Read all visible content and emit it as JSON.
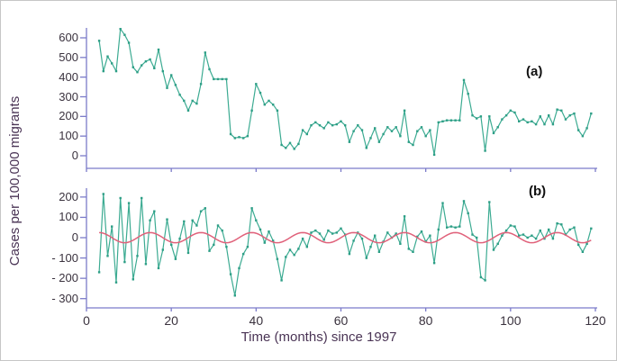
{
  "figure": {
    "ylabel": "Cases per 100,000 migrants",
    "xlabel": "Time (months) since 1997",
    "panel_a_label": "(a)",
    "panel_b_label": "(b)"
  },
  "colors": {
    "series_teal": "#3cab92",
    "marker_teal": "#2d9e86",
    "seasonal_red": "#e0617a",
    "axis_line": "#7b7bc9",
    "tick_text": "#3a323e",
    "title_text": "#4a3455",
    "panel_label_text": "#111111",
    "background": "#ffffff"
  },
  "chart_data": [
    {
      "type": "line",
      "panel": "a",
      "panel_label": "(a)",
      "x_start_month": 3,
      "x_step": 1,
      "values": [
        585,
        430,
        505,
        470,
        430,
        645,
        615,
        575,
        450,
        425,
        460,
        480,
        490,
        445,
        540,
        430,
        345,
        410,
        360,
        310,
        280,
        230,
        280,
        265,
        365,
        525,
        440,
        390,
        390,
        390,
        390,
        110,
        90,
        95,
        90,
        100,
        230,
        365,
        320,
        260,
        280,
        260,
        230,
        55,
        40,
        65,
        35,
        60,
        130,
        110,
        155,
        170,
        155,
        140,
        170,
        155,
        160,
        175,
        155,
        70,
        125,
        155,
        130,
        40,
        90,
        140,
        70,
        110,
        145,
        125,
        145,
        100,
        230,
        70,
        55,
        125,
        145,
        100,
        130,
        5,
        170,
        175,
        180,
        180,
        180,
        180,
        385,
        315,
        205,
        190,
        200,
        25,
        200,
        115,
        145,
        185,
        205,
        230,
        220,
        175,
        185,
        170,
        175,
        160,
        200,
        160,
        205,
        160,
        235,
        230,
        185,
        205,
        215,
        130,
        100,
        140,
        215
      ],
      "xlim": [
        0,
        120
      ],
      "xticks": [
        0,
        20,
        40,
        60,
        80,
        100,
        120
      ],
      "xtick_labels_shown": false,
      "ylim": [
        0,
        650
      ],
      "yticks": [
        600,
        500,
        400,
        300,
        200,
        100,
        0
      ],
      "ytick_labels": [
        "600",
        "500",
        "400",
        "300",
        "200",
        "100",
        "0"
      ],
      "grid": false,
      "markers": "square",
      "legend": "none"
    },
    {
      "type": "line",
      "panel": "b",
      "panel_label": "(b)",
      "x_start_month": 3,
      "x_step": 1,
      "series": [
        {
          "name": "detrended cases",
          "color": "#3cab92",
          "values": [
            -170,
            215,
            -90,
            55,
            -220,
            195,
            -120,
            170,
            -205,
            -90,
            195,
            -130,
            85,
            130,
            -150,
            -60,
            90,
            -35,
            -105,
            -5,
            80,
            -75,
            85,
            60,
            130,
            145,
            -65,
            -35,
            60,
            35,
            -45,
            -180,
            -285,
            -150,
            -80,
            -45,
            145,
            85,
            40,
            -25,
            30,
            -15,
            -105,
            -210,
            -95,
            -60,
            -85,
            -55,
            -5,
            -45,
            25,
            35,
            20,
            -10,
            35,
            20,
            25,
            45,
            15,
            -80,
            -15,
            25,
            -5,
            -100,
            -45,
            10,
            -70,
            -20,
            25,
            0,
            20,
            -30,
            105,
            -55,
            -70,
            5,
            30,
            -20,
            10,
            -125,
            40,
            170,
            50,
            55,
            50,
            55,
            180,
            120,
            15,
            0,
            -195,
            -210,
            175,
            -60,
            -30,
            10,
            35,
            60,
            55,
            10,
            15,
            0,
            10,
            -5,
            35,
            -5,
            40,
            -5,
            70,
            65,
            15,
            40,
            50,
            -35,
            -70,
            -30,
            45
          ]
        },
        {
          "name": "seasonal smooth",
          "color": "#e0617a",
          "curve": "sine",
          "amplitude": 25,
          "period_months": 12,
          "peak_month": 3
        }
      ],
      "xlim": [
        0,
        120
      ],
      "xticks": [
        0,
        20,
        40,
        60,
        80,
        100,
        120
      ],
      "xtick_labels": [
        "0",
        "20",
        "40",
        "60",
        "80",
        "100",
        "120"
      ],
      "ylim": [
        -320,
        240
      ],
      "yticks": [
        200,
        100,
        0,
        -100,
        -200,
        -300
      ],
      "ytick_labels": [
        "200",
        "100",
        "0",
        "- 100",
        "- 200",
        "- 300"
      ],
      "xlabel": "Time (months) since 1997",
      "grid": false,
      "markers": "square",
      "legend": "none"
    }
  ]
}
